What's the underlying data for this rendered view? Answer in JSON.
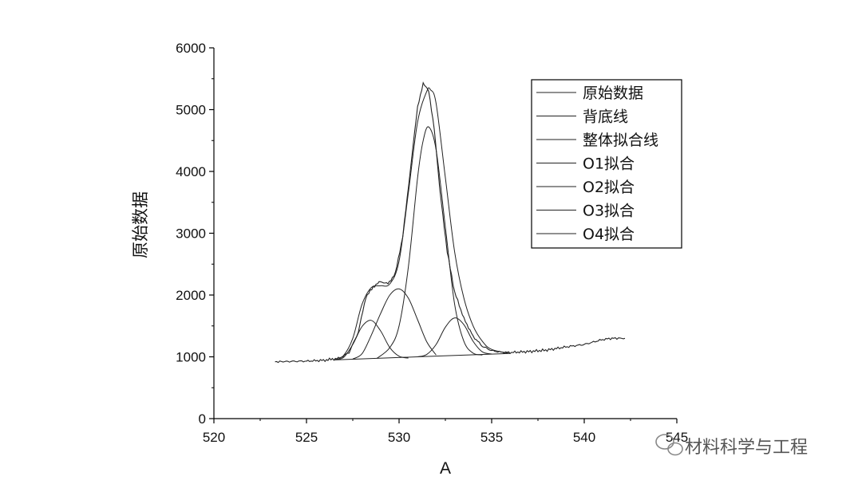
{
  "chart_data": {
    "type": "line",
    "title": "",
    "xlabel": "A",
    "ylabel": "原始数据",
    "xlim": [
      520,
      545
    ],
    "ylim": [
      0,
      6000
    ],
    "x_ticks": [
      520,
      525,
      530,
      535,
      540,
      545
    ],
    "y_ticks": [
      0,
      1000,
      2000,
      3000,
      4000,
      5000,
      6000
    ],
    "grid": false,
    "legend_position": "top-right",
    "series": [
      {
        "name": "原始数据",
        "x": [
          523.3,
          524.0,
          525.0,
          526.0,
          526.8,
          527.3,
          527.8,
          528.2,
          528.6,
          529.0,
          529.4,
          529.8,
          530.2,
          530.6,
          531.0,
          531.3,
          531.6,
          531.9,
          532.2,
          532.6,
          533.0,
          533.5,
          534.0,
          534.5,
          535.0,
          535.5,
          536.0,
          537.0,
          538.0,
          539.0,
          540.0,
          541.0,
          541.5,
          542.2
        ],
        "y": [
          920,
          925,
          930,
          945,
          980,
          1070,
          1400,
          1960,
          2130,
          2220,
          2180,
          2350,
          2950,
          4000,
          5050,
          5420,
          5300,
          4700,
          3700,
          2700,
          2050,
          1620,
          1330,
          1170,
          1100,
          1075,
          1070,
          1085,
          1110,
          1160,
          1200,
          1280,
          1300,
          1300
        ]
      },
      {
        "name": "背底线",
        "x": [
          526.5,
          536.0
        ],
        "y": [
          950,
          1055
        ]
      },
      {
        "name": "整体拟合线",
        "x": [
          526.5,
          527.0,
          527.5,
          528.0,
          528.5,
          529.0,
          529.5,
          530.0,
          530.5,
          531.0,
          531.5,
          531.7,
          532.0,
          532.5,
          533.0,
          533.5,
          534.0,
          534.5,
          535.0,
          536.0
        ],
        "y": [
          950,
          1020,
          1300,
          1850,
          2120,
          2150,
          2180,
          2550,
          3650,
          4800,
          5300,
          5320,
          5100,
          3900,
          2700,
          1950,
          1500,
          1250,
          1120,
          1055
        ]
      },
      {
        "name": "O1拟合",
        "x": [
          526.5,
          527.0,
          527.5,
          528.0,
          528.5,
          529.0,
          529.5,
          530.0,
          530.5
        ],
        "y": [
          952,
          990,
          1200,
          1490,
          1590,
          1420,
          1150,
          1010,
          980
        ]
      },
      {
        "name": "O2拟合",
        "x": [
          527.5,
          528.0,
          528.5,
          529.0,
          529.5,
          530.0,
          530.5,
          531.0,
          531.5,
          532.0
        ],
        "y": [
          965,
          1050,
          1350,
          1700,
          2000,
          2100,
          1950,
          1600,
          1240,
          1030
        ]
      },
      {
        "name": "O3拟合",
        "x": [
          528.8,
          529.5,
          530.0,
          530.5,
          531.0,
          531.3,
          531.6,
          532.0,
          532.5,
          533.0,
          533.5,
          534.0,
          534.5
        ],
        "y": [
          975,
          1150,
          1500,
          2450,
          3900,
          4500,
          4720,
          4350,
          3100,
          1850,
          1250,
          1060,
          1030
        ]
      },
      {
        "name": "O4拟合",
        "x": [
          531.0,
          531.5,
          532.0,
          532.5,
          533.0,
          533.5,
          534.0,
          534.5,
          535.0
        ],
        "y": [
          1000,
          1040,
          1200,
          1480,
          1630,
          1520,
          1250,
          1080,
          1045
        ]
      }
    ]
  },
  "watermark": {
    "icon": "wechat-icon",
    "text": "材料科学与工程"
  }
}
